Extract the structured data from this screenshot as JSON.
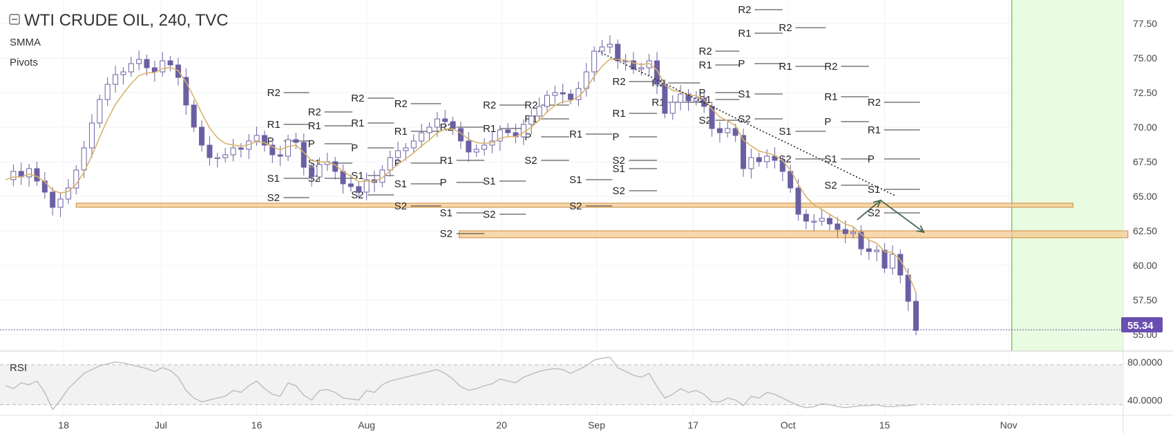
{
  "header": {
    "title": "WTI CRUDE OIL, 240, TVC",
    "indicators": [
      "SMMA",
      "Pivots"
    ]
  },
  "rsi_panel": {
    "label": "RSI"
  },
  "last_price": "55.34",
  "colors": {
    "candle": "#6b5fa3",
    "smma": "#d8b36a",
    "forecast_zone": "#e9fbe0",
    "forecast_line": "#7cc26a",
    "support_band": "#f5c990",
    "support_band_border": "#c98b3a",
    "last_price_tag": "#6a4fb0",
    "rsi_line": "#b8b8b8",
    "arrow": "#4a6a52"
  },
  "chart_data": [
    {
      "type": "line",
      "series": [
        {
          "name": "",
          "values": [
            66.2,
            66.8,
            66.4,
            67.0,
            66.1,
            65.3,
            64.2,
            64.8,
            65.6,
            66.9,
            68.5,
            70.3,
            72.0,
            73.1,
            73.8,
            74.0,
            74.6,
            74.9,
            74.3,
            74.0,
            74.8,
            74.5,
            73.6,
            71.6,
            70.0,
            68.7,
            67.8,
            67.8,
            68.0,
            68.5,
            68.4,
            69.0,
            69.4,
            68.7,
            68.0,
            67.9,
            69.1,
            68.9,
            67.1,
            66.4,
            67.3,
            67.5,
            66.8,
            65.9,
            65.7,
            65.3,
            66.2,
            66.0,
            66.9,
            67.8,
            68.3,
            68.5,
            69.0,
            69.6,
            70.0,
            70.6,
            70.4,
            69.9,
            69.0,
            68.2,
            68.4,
            68.7,
            69.0,
            69.8,
            69.6,
            69.3,
            70.2,
            70.8,
            71.5,
            72.3,
            72.5,
            72.4,
            72.0,
            72.8,
            74.0,
            75.5,
            75.8,
            76.0,
            74.8,
            74.8,
            74.2,
            74.3,
            74.8,
            73.1,
            71.0,
            71.8,
            72.4,
            71.9,
            72.1,
            71.5,
            69.9,
            69.6,
            69.9,
            69.4,
            67.0,
            67.8,
            67.5,
            67.9,
            67.6,
            66.8,
            65.6,
            63.7,
            63.2,
            63.2,
            63.4,
            63.0,
            62.6,
            62.3,
            62.4,
            61.2,
            61.0,
            61.1,
            59.8,
            60.8,
            59.3,
            57.4,
            55.3
          ]
        }
      ],
      "xlabel": "",
      "ylabel": "",
      "ylim": [
        53.8,
        79.2
      ],
      "y_ticks": [
        "77.50",
        "75.00",
        "72.50",
        "70.00",
        "67.50",
        "65.00",
        "62.50",
        "60.00",
        "57.50",
        "55.00"
      ],
      "x_ticks": [
        "18",
        "Jul",
        "16",
        "Aug",
        "20",
        "Sep",
        "17",
        "Oct",
        "15",
        "Nov"
      ],
      "grid": true,
      "annotations": [
        {
          "kind": "support_zone",
          "price_low": 64.2,
          "price_high": 64.5,
          "label": ""
        },
        {
          "kind": "support_zone",
          "price_low": 62.0,
          "price_high": 62.5,
          "label": ""
        },
        {
          "kind": "trendline_dotted",
          "from": [
            75.5,
            75.5
          ],
          "to": [
            113.5,
            65.0
          ]
        },
        {
          "kind": "forecast_arrows",
          "points": [
            [
              108.5,
              63.3
            ],
            [
              111.5,
              64.7
            ],
            [
              117.0,
              62.4
            ]
          ]
        }
      ],
      "pivots": [
        {
          "label": "R2",
          "price": 72.5,
          "x0": 33.5,
          "x1": 38.7
        },
        {
          "label": "R1",
          "price": 70.2,
          "x0": 33.5,
          "x1": 38.7
        },
        {
          "label": "P",
          "price": 69.0,
          "x0": 33.5,
          "x1": 38.7
        },
        {
          "label": "S1",
          "price": 66.3,
          "x0": 33.5,
          "x1": 38.7
        },
        {
          "label": "S2",
          "price": 64.9,
          "x0": 33.5,
          "x1": 38.7
        },
        {
          "label": "S2",
          "price": 66.3,
          "x0": 38.7,
          "x1": 44.2
        },
        {
          "label": "R2",
          "price": 71.1,
          "x0": 38.7,
          "x1": 44.2
        },
        {
          "label": "R1",
          "price": 70.1,
          "x0": 38.7,
          "x1": 44.2
        },
        {
          "label": "P",
          "price": 68.8,
          "x0": 38.7,
          "x1": 44.2
        },
        {
          "label": "S1",
          "price": 67.4,
          "x0": 38.7,
          "x1": 44.2
        },
        {
          "label": "R2",
          "price": 72.1,
          "x0": 44.2,
          "x1": 49.5
        },
        {
          "label": "R1",
          "price": 70.3,
          "x0": 44.2,
          "x1": 49.5
        },
        {
          "label": "P",
          "price": 68.5,
          "x0": 44.2,
          "x1": 49.5
        },
        {
          "label": "S1",
          "price": 66.5,
          "x0": 44.2,
          "x1": 49.5
        },
        {
          "label": "S2",
          "price": 65.1,
          "x0": 44.2,
          "x1": 49.5
        },
        {
          "label": "R2",
          "price": 71.7,
          "x0": 49.7,
          "x1": 55.5
        },
        {
          "label": "R1",
          "price": 69.7,
          "x0": 49.7,
          "x1": 55.5
        },
        {
          "label": "P",
          "price": 67.4,
          "x0": 49.7,
          "x1": 55.5
        },
        {
          "label": "S1",
          "price": 65.9,
          "x0": 49.7,
          "x1": 55.5
        },
        {
          "label": "S2",
          "price": 64.3,
          "x0": 49.7,
          "x1": 55.5
        },
        {
          "label": "R2",
          "price": 70.0,
          "x0": 55.5,
          "x1": 61.0
        },
        {
          "label": "R1",
          "price": 67.6,
          "x0": 55.5,
          "x1": 61.0
        },
        {
          "label": "P",
          "price": 66.0,
          "x0": 55.5,
          "x1": 61.0
        },
        {
          "label": "S1",
          "price": 63.8,
          "x0": 55.5,
          "x1": 61.0
        },
        {
          "label": "S2",
          "price": 62.3,
          "x0": 55.5,
          "x1": 61.0
        },
        {
          "label": "R2",
          "price": 71.6,
          "x0": 61.0,
          "x1": 66.3
        },
        {
          "label": "R1",
          "price": 69.9,
          "x0": 61.0,
          "x1": 66.3
        },
        {
          "label": "S1",
          "price": 66.1,
          "x0": 61.0,
          "x1": 66.3
        },
        {
          "label": "S2",
          "price": 63.7,
          "x0": 61.0,
          "x1": 66.3
        },
        {
          "label": "R2",
          "price": 71.6,
          "x0": 66.3,
          "x1": 71.8
        },
        {
          "label": "R1",
          "price": 70.6,
          "x0": 66.3,
          "x1": 71.8
        },
        {
          "label": "P",
          "price": 69.3,
          "x0": 66.3,
          "x1": 71.8
        },
        {
          "label": "S2",
          "price": 67.6,
          "x0": 66.3,
          "x1": 71.8
        },
        {
          "label": "R1",
          "price": 69.5,
          "x0": 72.0,
          "x1": 77.3
        },
        {
          "label": "S1",
          "price": 66.2,
          "x0": 72.0,
          "x1": 77.3
        },
        {
          "label": "S2",
          "price": 64.3,
          "x0": 72.0,
          "x1": 77.3
        },
        {
          "label": "R2",
          "price": 73.3,
          "x0": 77.5,
          "x1": 83.0
        },
        {
          "label": "R1",
          "price": 71.0,
          "x0": 77.5,
          "x1": 83.0
        },
        {
          "label": "P",
          "price": 69.3,
          "x0": 77.5,
          "x1": 83.0
        },
        {
          "label": "S1",
          "price": 67.0,
          "x0": 77.5,
          "x1": 83.0
        },
        {
          "label": "S2",
          "price": 65.4,
          "x0": 77.5,
          "x1": 83.0
        },
        {
          "label": "R2",
          "price": 73.2,
          "x0": 82.5,
          "x1": 88.5
        },
        {
          "label": "R1",
          "price": 71.8,
          "x0": 82.5,
          "x1": 88.5
        },
        {
          "label": "P",
          "price": 72.5,
          "x0": 88.5,
          "x1": 93.5
        },
        {
          "label": "S1",
          "price": 72.0,
          "x0": 88.5,
          "x1": 93.5
        },
        {
          "label": "S2",
          "price": 70.5,
          "x0": 88.5,
          "x1": 93.5
        },
        {
          "label": "S2",
          "price": 67.6,
          "x0": 77.5,
          "x1": 83.0
        },
        {
          "label": "R2",
          "price": 75.5,
          "x0": 88.5,
          "x1": 93.5
        },
        {
          "label": "R1",
          "price": 74.5,
          "x0": 88.5,
          "x1": 93.5
        },
        {
          "label": "R2",
          "price": 78.5,
          "x0": 93.5,
          "x1": 99.0
        },
        {
          "label": "R1",
          "price": 76.8,
          "x0": 93.5,
          "x1": 99.0
        },
        {
          "label": "P",
          "price": 74.6,
          "x0": 93.5,
          "x1": 99.0
        },
        {
          "label": "S1",
          "price": 72.4,
          "x0": 93.5,
          "x1": 99.0
        },
        {
          "label": "S2",
          "price": 70.6,
          "x0": 93.5,
          "x1": 99.0
        },
        {
          "label": "R2",
          "price": 77.2,
          "x0": 98.7,
          "x1": 104.5
        },
        {
          "label": "R1",
          "price": 74.4,
          "x0": 98.7,
          "x1": 104.5
        },
        {
          "label": "S1",
          "price": 69.7,
          "x0": 98.7,
          "x1": 104.5
        },
        {
          "label": "S2",
          "price": 67.7,
          "x0": 98.7,
          "x1": 104.5
        },
        {
          "label": "R2",
          "price": 74.4,
          "x0": 104.5,
          "x1": 110.0
        },
        {
          "label": "R1",
          "price": 72.2,
          "x0": 104.5,
          "x1": 110.0
        },
        {
          "label": "P",
          "price": 70.4,
          "x0": 104.5,
          "x1": 110.0
        },
        {
          "label": "S1",
          "price": 67.7,
          "x0": 104.5,
          "x1": 110.0
        },
        {
          "label": "S2",
          "price": 65.8,
          "x0": 104.5,
          "x1": 110.0
        },
        {
          "label": "R2",
          "price": 71.8,
          "x0": 110.0,
          "x1": 116.5
        },
        {
          "label": "R1",
          "price": 69.8,
          "x0": 110.0,
          "x1": 116.5
        },
        {
          "label": "P",
          "price": 67.7,
          "x0": 110.0,
          "x1": 116.5
        },
        {
          "label": "S1",
          "price": 65.5,
          "x0": 110.0,
          "x1": 116.5
        },
        {
          "label": "S2",
          "price": 63.8,
          "x0": 110.0,
          "x1": 116.5
        }
      ]
    },
    {
      "type": "line",
      "title": "RSI",
      "series": [
        {
          "name": "",
          "values": [
            55,
            52,
            58,
            56,
            60,
            48,
            30,
            40,
            52,
            60,
            68,
            72,
            76,
            78,
            80,
            79,
            77,
            75,
            73,
            70,
            74,
            71,
            64,
            50,
            42,
            38,
            40,
            42,
            44,
            50,
            48,
            55,
            60,
            52,
            46,
            44,
            58,
            55,
            45,
            40,
            50,
            51,
            48,
            42,
            41,
            40,
            50,
            48,
            56,
            60,
            62,
            64,
            66,
            68,
            70,
            72,
            68,
            62,
            54,
            50,
            52,
            55,
            57,
            62,
            60,
            58,
            64,
            67,
            70,
            72,
            73,
            72,
            68,
            72,
            76,
            82,
            84,
            85,
            74,
            70,
            66,
            64,
            68,
            54,
            42,
            46,
            52,
            48,
            50,
            46,
            38,
            38,
            42,
            40,
            34,
            44,
            42,
            48,
            46,
            42,
            38,
            34,
            32,
            33,
            36,
            35,
            33,
            32,
            33,
            34,
            34,
            35,
            33,
            33,
            34,
            34,
            35
          ]
        }
      ],
      "ylim": [
        26,
        90
      ],
      "y_ticks": [
        "80.0000",
        "40.0000"
      ],
      "bands": [
        77,
        35
      ]
    }
  ]
}
